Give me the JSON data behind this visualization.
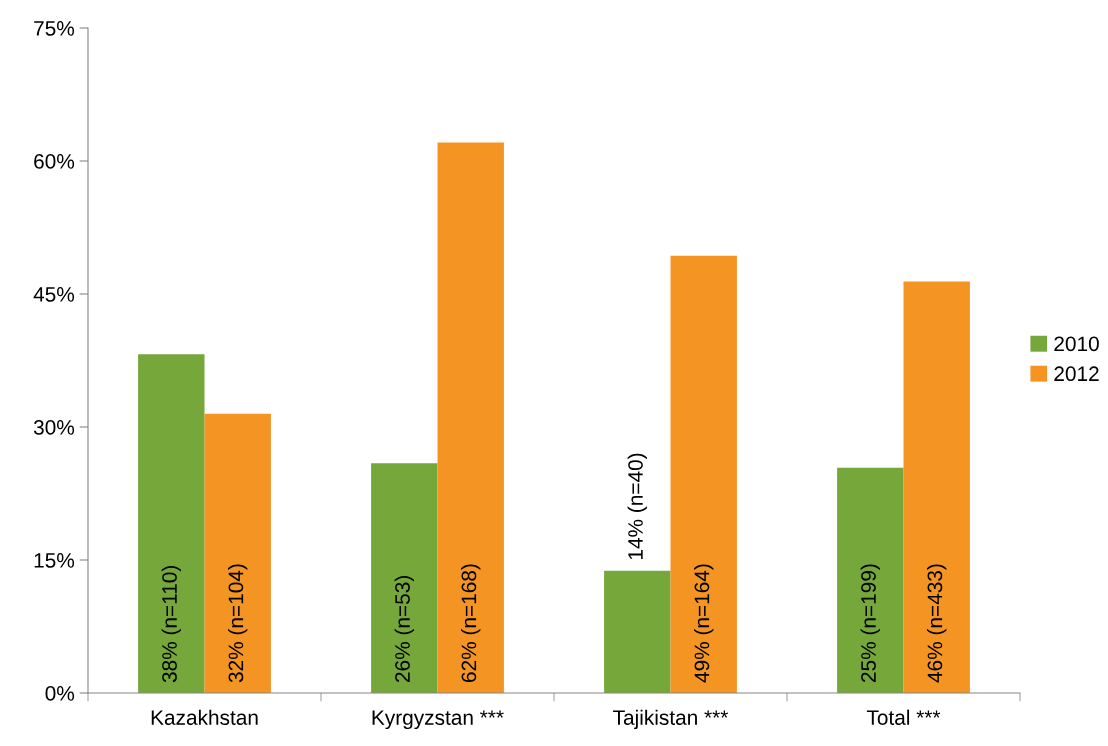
{
  "chart_data": {
    "type": "bar",
    "categories": [
      "Kazakhstan",
      "Kyrgyzstan ***",
      "Tajikistan ***",
      "Total ***"
    ],
    "series": [
      {
        "name": "2010",
        "color": "#75a73a",
        "values": [
          38.2,
          25.9,
          13.8,
          25.4
        ],
        "value_labels": [
          "38% (n=110)",
          "26% (n=53)",
          "14% (n=40)",
          "25% (n=199)"
        ]
      },
      {
        "name": "2012",
        "color": "#f39423",
        "values": [
          31.5,
          62.1,
          49.3,
          46.4
        ],
        "value_labels": [
          "32% (n=104)",
          "62% (n=168)",
          "49% (n=164)",
          "46% (n=433)"
        ]
      }
    ],
    "ylim": [
      0,
      75
    ],
    "yticks": [
      {
        "value": 0,
        "label": "0%"
      },
      {
        "value": 15,
        "label": "15%"
      },
      {
        "value": 30,
        "label": "30%"
      },
      {
        "value": 45,
        "label": "45%"
      },
      {
        "value": 60,
        "label": "60%"
      },
      {
        "value": 75,
        "label": "75%"
      }
    ],
    "grid": false,
    "legend": "right"
  }
}
